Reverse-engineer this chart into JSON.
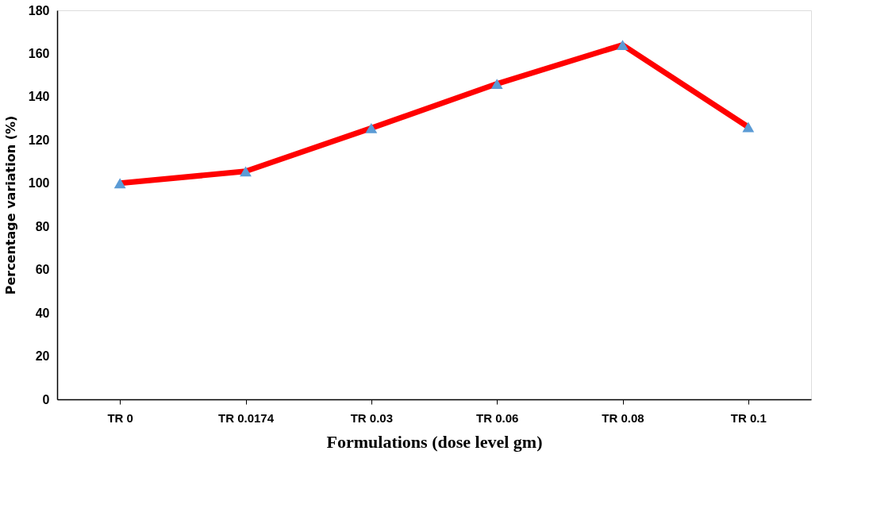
{
  "chart_data": {
    "type": "line",
    "xlabel": "Formulations  (dose level gm)",
    "ylabel": "Percentage variation (%)",
    "categories": [
      "TR 0",
      "TR 0.0174",
      "TR 0.03",
      "TR 0.06",
      "TR 0.08",
      "TR 0.1"
    ],
    "series": [
      {
        "color": "#ff0000",
        "colors": [
          "#5b9bd5",
          "#5b9bd5",
          "#5b9bd5",
          "#5b9bd5",
          "#5b9bd5",
          "#5b9bd5"
        ],
        "values": [
          100,
          105.5,
          125.5,
          146,
          164,
          126
        ]
      }
    ],
    "ylim": [
      0,
      180
    ],
    "yticks": [
      0,
      20,
      40,
      60,
      80,
      100,
      120,
      140,
      160,
      180
    ],
    "grid": false,
    "marker": "triangle",
    "line_style": "solid"
  }
}
